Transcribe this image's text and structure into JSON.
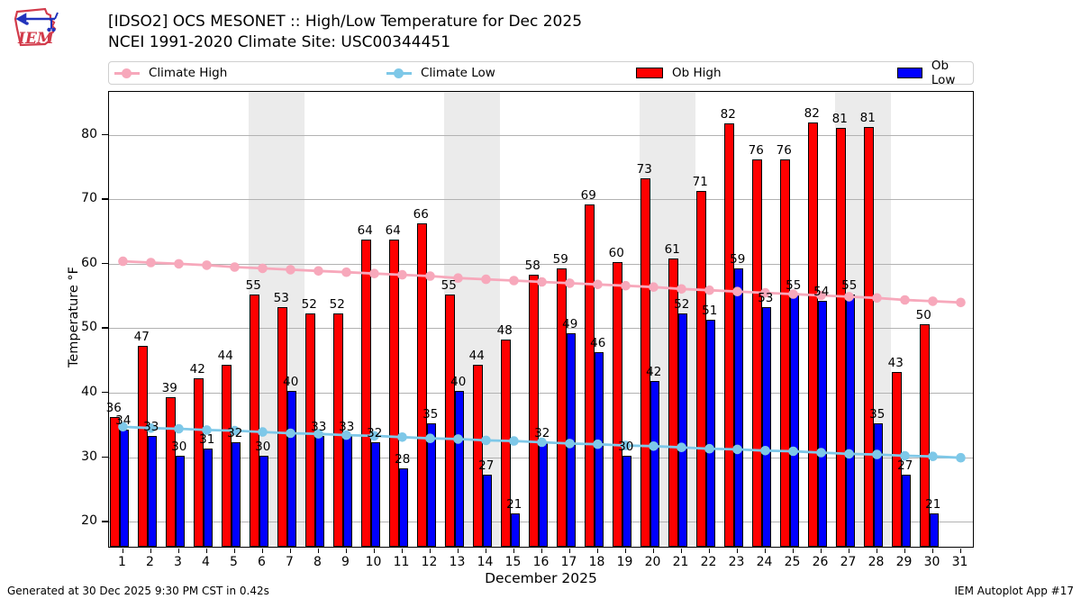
{
  "header": {
    "title_line1": "[IDSO2] OCS MESONET :: High/Low Temperature for Dec 2025",
    "title_line2": "NCEI 1991-2020 Climate Site: USC00344451",
    "logo_text": "IEM"
  },
  "legend": [
    {
      "label": "Climate High",
      "type": "line",
      "color": "#f7a8bb"
    },
    {
      "label": "Climate Low",
      "type": "line",
      "color": "#7ec8e8"
    },
    {
      "label": "Ob High",
      "type": "patch",
      "color": "#ff0000"
    },
    {
      "label": "Ob Low",
      "type": "patch",
      "color": "#0000ff"
    }
  ],
  "footer": {
    "left": "Generated at 30 Dec 2025 9:30 PM CST in 0.42s",
    "right": "IEM Autoplot App #17"
  },
  "chart_data": {
    "type": "bar",
    "title": "[IDSO2] OCS MESONET :: High/Low Temperature for Dec 2025",
    "subtitle": "NCEI 1991-2020 Climate Site: USC00344451",
    "xlabel": "December 2025",
    "ylabel": "Temperature °F",
    "days": [
      1,
      2,
      3,
      4,
      5,
      6,
      7,
      8,
      9,
      10,
      11,
      12,
      13,
      14,
      15,
      16,
      17,
      18,
      19,
      20,
      21,
      22,
      23,
      24,
      25,
      26,
      27,
      28,
      29,
      30,
      31
    ],
    "ylim": [
      15.8,
      86.7
    ],
    "yticks": [
      20,
      30,
      40,
      50,
      60,
      70,
      80
    ],
    "grid": "horizontal",
    "legend_position": "top",
    "weekend_bands": [
      [
        5.5,
        7.5
      ],
      [
        12.5,
        14.5
      ],
      [
        19.5,
        21.5
      ],
      [
        26.5,
        28.5
      ]
    ],
    "series": [
      {
        "name": "Ob High",
        "type": "bar",
        "color": "#ff0000",
        "values": [
          36,
          47,
          39,
          42,
          44,
          55,
          53,
          52,
          52,
          63.5,
          63.5,
          66,
          55,
          44,
          48,
          58,
          59,
          69,
          60,
          73,
          60.5,
          71,
          81.5,
          76,
          76,
          81.7,
          80.8,
          81,
          43,
          50.3,
          null
        ],
        "labels": [
          "36",
          "47",
          "39",
          "42",
          "44",
          "55",
          "53",
          "52",
          "52",
          "64",
          "64",
          "66",
          "55",
          "44",
          "48",
          "58",
          "59",
          "69",
          "60",
          "73",
          "61",
          "71",
          "82",
          "76",
          "76",
          "82",
          "81",
          "81",
          "43",
          "50",
          ""
        ]
      },
      {
        "name": "Ob Low",
        "type": "bar",
        "color": "#0000ff",
        "values": [
          34,
          33,
          30,
          31,
          32,
          30,
          40,
          33,
          33,
          32,
          28,
          35,
          40,
          27,
          21,
          32,
          49,
          46,
          30,
          41.5,
          52,
          51,
          59,
          53,
          55,
          54,
          55,
          35,
          27,
          21,
          null
        ],
        "labels": [
          "34",
          "33",
          "30",
          "31",
          "32",
          "30",
          "40",
          "33",
          "33",
          "32",
          "28",
          "35",
          "40",
          "27",
          "21",
          "32",
          "49",
          "46",
          "30",
          "42",
          "52",
          "51",
          "59",
          "53",
          "55",
          "54",
          "55",
          "35",
          "27",
          "21",
          ""
        ]
      },
      {
        "name": "Climate High",
        "type": "line",
        "color": "#f7a8bb",
        "values": [
          60.4,
          60.2,
          60.0,
          59.8,
          59.5,
          59.3,
          59.1,
          58.9,
          58.7,
          58.5,
          58.3,
          58.1,
          57.8,
          57.6,
          57.4,
          57.2,
          57.0,
          56.8,
          56.6,
          56.4,
          56.1,
          55.9,
          55.7,
          55.5,
          55.3,
          55.1,
          54.9,
          54.7,
          54.4,
          54.2,
          54.0
        ]
      },
      {
        "name": "Climate Low",
        "type": "line",
        "color": "#7ec8e8",
        "values": [
          34.7,
          34.5,
          34.4,
          34.2,
          34.1,
          33.9,
          33.7,
          33.6,
          33.4,
          33.3,
          33.1,
          32.9,
          32.8,
          32.6,
          32.5,
          32.3,
          32.1,
          32.0,
          31.8,
          31.7,
          31.5,
          31.3,
          31.2,
          31.0,
          30.9,
          30.7,
          30.5,
          30.4,
          30.2,
          30.1,
          29.9
        ]
      }
    ]
  }
}
